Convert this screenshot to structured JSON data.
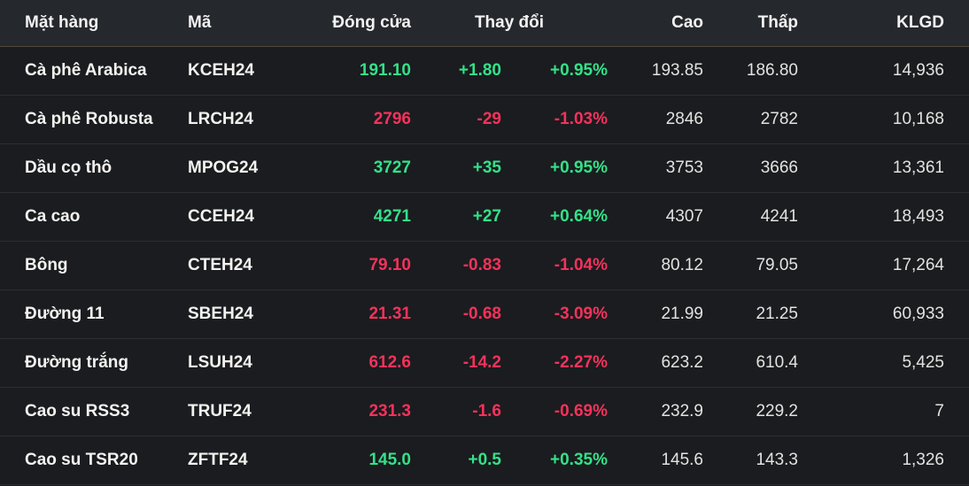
{
  "colors": {
    "up": "#33e287",
    "down": "#f6325a",
    "header_bg": "#25282c",
    "row_bg": "#1a1c20"
  },
  "table": {
    "header": {
      "name": "Mặt hàng",
      "code": "Mã",
      "close": "Đóng cửa",
      "change": "Thay đổi",
      "high": "Cao",
      "low": "Thấp",
      "volume": "KLGD"
    },
    "rows": [
      {
        "name": "Cà phê Arabica",
        "code": "KCEH24",
        "close": "191.10",
        "change": "+1.80",
        "change_pct": "+0.95%",
        "high": "193.85",
        "low": "186.80",
        "volume": "14,936",
        "direction": "up"
      },
      {
        "name": "Cà phê Robusta",
        "code": "LRCH24",
        "close": "2796",
        "change": "-29",
        "change_pct": "-1.03%",
        "high": "2846",
        "low": "2782",
        "volume": "10,168",
        "direction": "down"
      },
      {
        "name": "Dầu cọ thô",
        "code": "MPOG24",
        "close": "3727",
        "change": "+35",
        "change_pct": "+0.95%",
        "high": "3753",
        "low": "3666",
        "volume": "13,361",
        "direction": "up"
      },
      {
        "name": "Ca cao",
        "code": "CCEH24",
        "close": "4271",
        "change": "+27",
        "change_pct": "+0.64%",
        "high": "4307",
        "low": "4241",
        "volume": "18,493",
        "direction": "up"
      },
      {
        "name": "Bông",
        "code": "CTEH24",
        "close": "79.10",
        "change": "-0.83",
        "change_pct": "-1.04%",
        "high": "80.12",
        "low": "79.05",
        "volume": "17,264",
        "direction": "down"
      },
      {
        "name": "Đường 11",
        "code": "SBEH24",
        "close": "21.31",
        "change": "-0.68",
        "change_pct": "-3.09%",
        "high": "21.99",
        "low": "21.25",
        "volume": "60,933",
        "direction": "down"
      },
      {
        "name": "Đường trắng",
        "code": "LSUH24",
        "close": "612.6",
        "change": "-14.2",
        "change_pct": "-2.27%",
        "high": "623.2",
        "low": "610.4",
        "volume": "5,425",
        "direction": "down"
      },
      {
        "name": "Cao su RSS3",
        "code": "TRUF24",
        "close": "231.3",
        "change": "-1.6",
        "change_pct": "-0.69%",
        "high": "232.9",
        "low": "229.2",
        "volume": "7",
        "direction": "down"
      },
      {
        "name": "Cao su TSR20",
        "code": "ZFTF24",
        "close": "145.0",
        "change": "+0.5",
        "change_pct": "+0.35%",
        "high": "145.6",
        "low": "143.3",
        "volume": "1,326",
        "direction": "up"
      }
    ]
  }
}
